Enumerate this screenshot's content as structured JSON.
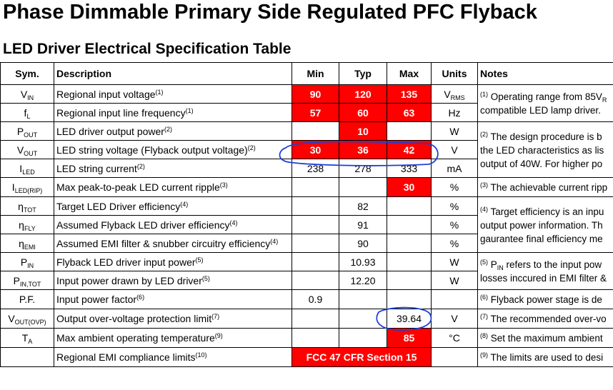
{
  "title": "Phase Dimmable Primary Side Regulated PFC Flyback",
  "subtitle": "LED Driver Electrical Specification Table",
  "headers": {
    "sym": "Sym.",
    "desc": "Description",
    "min": "Min",
    "typ": "Typ",
    "max": "Max",
    "units": "Units",
    "notes": "Notes"
  },
  "rows": [
    {
      "sym": "V",
      "sym_sub": "IN",
      "desc": "Regional input voltage",
      "ref": "(1)",
      "min": "90",
      "typ": "120",
      "max": "135",
      "unit": "V",
      "unit_sub": "RMS"
    },
    {
      "sym": "f",
      "sym_sub": "L",
      "desc": "Regional input line frequency",
      "ref": "(1)",
      "min": "57",
      "typ": "60",
      "max": "63",
      "unit": "Hz",
      "unit_sub": ""
    },
    {
      "sym": "P",
      "sym_sub": "OUT",
      "desc": "LED driver output power",
      "ref": "(2)",
      "min": "",
      "typ": "10",
      "max": "",
      "unit": "W",
      "unit_sub": ""
    },
    {
      "sym": "V",
      "sym_sub": "OUT",
      "desc": "LED string voltage (Flyback output voltage)",
      "ref": "(2)",
      "min": "30",
      "typ": "36",
      "max": "42",
      "unit": "V",
      "unit_sub": ""
    },
    {
      "sym": "I",
      "sym_sub": "LED",
      "desc": "LED string current",
      "ref": "(2)",
      "min": "238",
      "typ": "278",
      "max": "333",
      "unit": "mA",
      "unit_sub": ""
    },
    {
      "sym": "I",
      "sym_sub": "LED(RIP)",
      "desc": "Max peak-to-peak LED current ripple",
      "ref": "(3)",
      "min": "",
      "typ": "",
      "max": "30",
      "unit": "%",
      "unit_sub": ""
    },
    {
      "sym": "η",
      "sym_sub": "TOT",
      "desc": "Target LED Driver efficiency",
      "ref": "(4)",
      "min": "",
      "typ": "82",
      "max": "",
      "unit": "%",
      "unit_sub": ""
    },
    {
      "sym": "η",
      "sym_sub": "FLY",
      "desc": "Assumed Flyback LED driver efficiency",
      "ref": "(4)",
      "min": "",
      "typ": "91",
      "max": "",
      "unit": "%",
      "unit_sub": ""
    },
    {
      "sym": "η",
      "sym_sub": "EMI",
      "desc": "Assumed EMI filter & snubber circuitry efficiency",
      "ref": "(4)",
      "min": "",
      "typ": "90",
      "max": "",
      "unit": "%",
      "unit_sub": ""
    },
    {
      "sym": "P",
      "sym_sub": "IN",
      "desc": "Flyback LED driver input power",
      "ref": "(5)",
      "min": "",
      "typ": "10.93",
      "max": "",
      "unit": "W",
      "unit_sub": ""
    },
    {
      "sym": "P",
      "sym_sub": "IN,TOT",
      "desc": "Input power drawn by LED driver",
      "ref": "(5)",
      "min": "",
      "typ": "12.20",
      "max": "",
      "unit": "W",
      "unit_sub": ""
    },
    {
      "sym": "P.F.",
      "sym_sub": "",
      "desc": "Input power factor",
      "ref": "(6)",
      "min": "0.9",
      "typ": "",
      "max": "",
      "unit": "",
      "unit_sub": ""
    },
    {
      "sym": "V",
      "sym_sub": "OUT(OVP)",
      "desc": "Output over-voltage protection limit",
      "ref": "(7)",
      "min": "",
      "typ": "",
      "max": "39.64",
      "unit": "V",
      "unit_sub": ""
    },
    {
      "sym": "T",
      "sym_sub": "A",
      "desc": "Max ambient operating temperature",
      "ref": "(9)",
      "min": "",
      "typ": "",
      "max": "85",
      "unit": "°C",
      "unit_sub": ""
    },
    {
      "sym": "",
      "sym_sub": "",
      "desc": "Regional EMI compliance limits",
      "ref": "(10)",
      "merged": "FCC 47 CFR Section 15",
      "unit": "",
      "unit_sub": ""
    }
  ],
  "notes": [
    {
      "ref": "(1)",
      "line1": "Operating range from 85V",
      "line1_sub": "R",
      "line2": "compatible LED lamp driver."
    },
    {
      "ref": "(2)",
      "line1": "The design procedure is b",
      "line2": "the LED characteristics as lis",
      "line3": "output of 40W.  For higher po"
    },
    {
      "ref": "(3)",
      "line1": "The achievable current ripp"
    },
    {
      "ref": "(4)",
      "line1": "Target efficiency is an inpu",
      "line2": "output power information.  Th",
      "line3": "gaurantee final efficiency me"
    },
    {
      "ref": "(5)",
      "line1": "P",
      "line1_sub": "IN",
      "line1_rest": " refers to the input pow",
      "line2": "losses inccured in EMI filter &"
    },
    {
      "ref": "(6)",
      "line1": "Flyback power stage is de"
    },
    {
      "ref": "(7)",
      "line1": "The recommended over-vo"
    },
    {
      "ref": "(8)",
      "line1": "Set the maximum ambient"
    },
    {
      "ref": "(9)",
      "line1": "The limits are used to desi"
    }
  ],
  "colors": {
    "highlight": "#ff0000",
    "annotation": "#1a3fd6"
  }
}
